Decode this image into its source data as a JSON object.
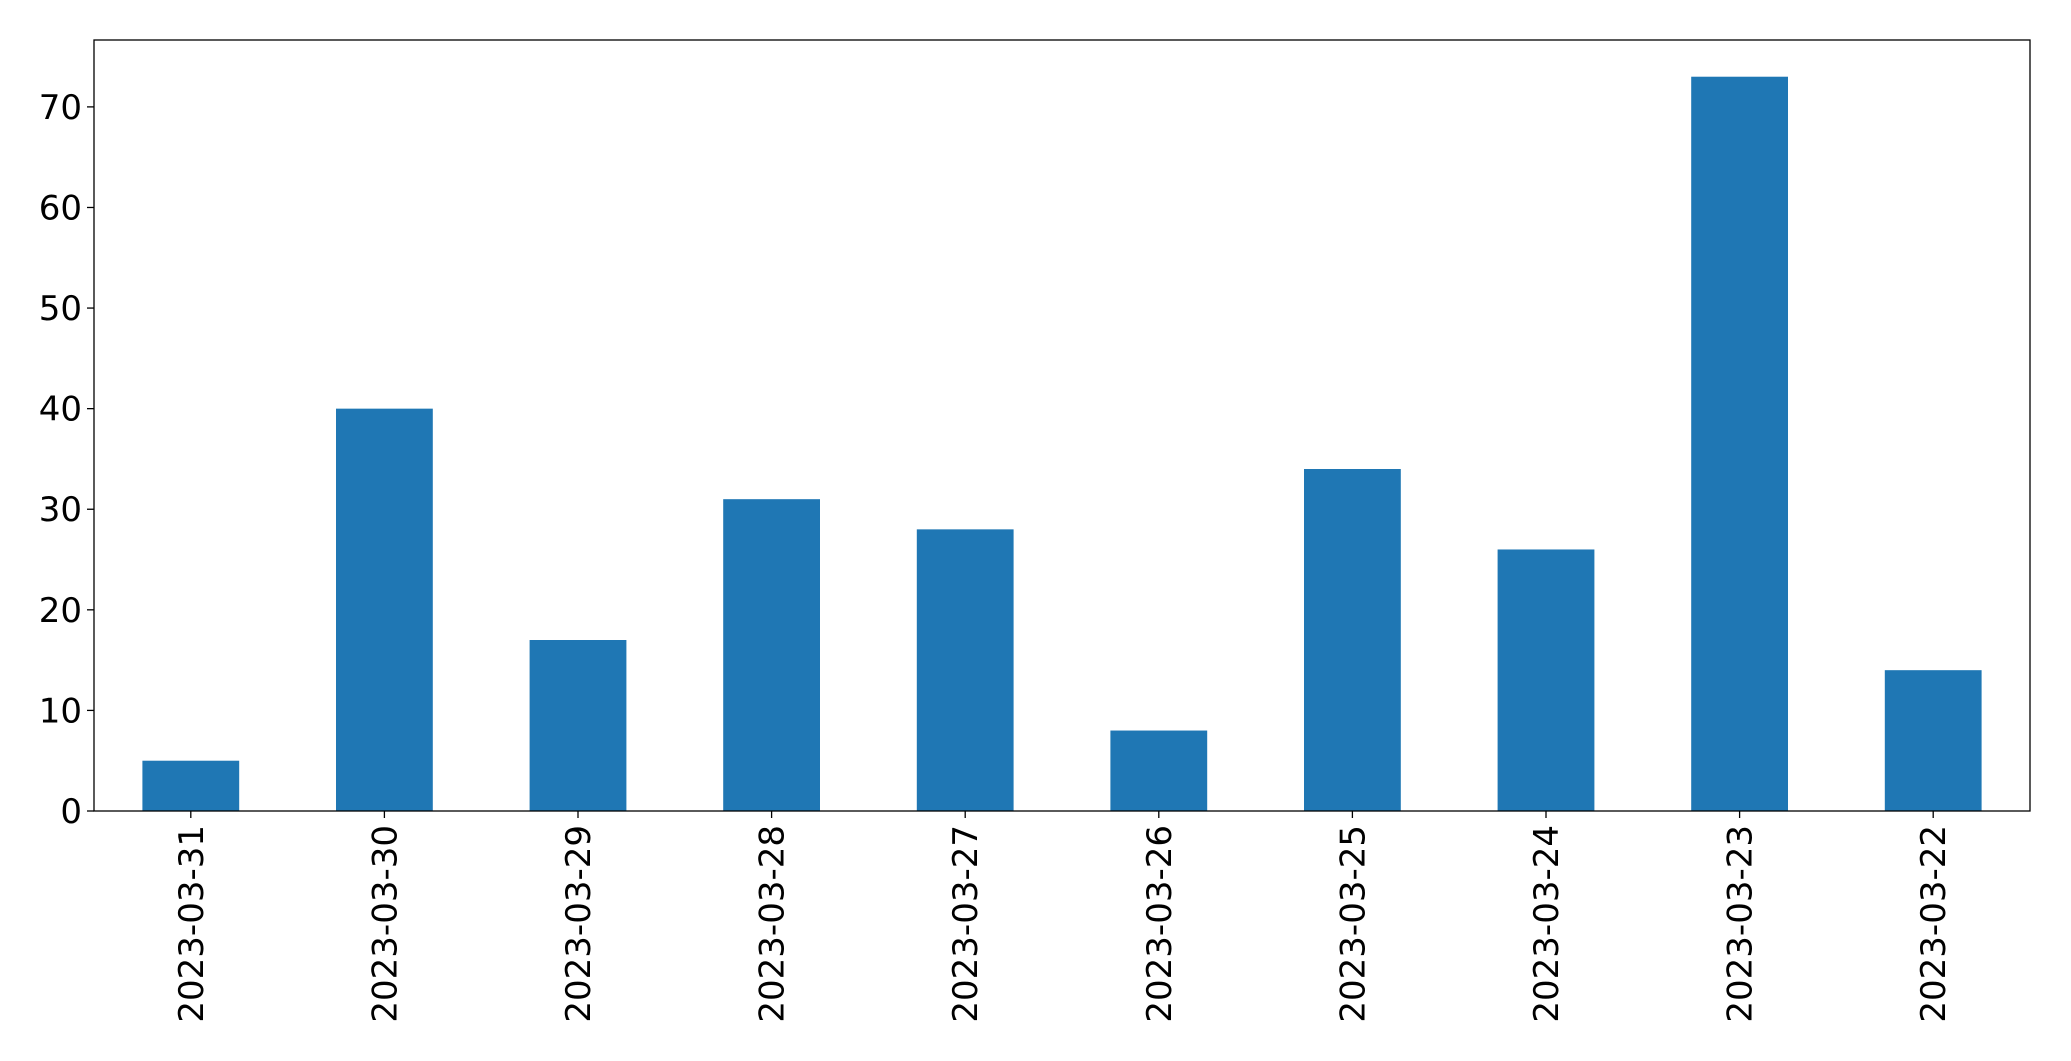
{
  "chart_data": {
    "type": "bar",
    "categories": [
      "2023-03-31",
      "2023-03-30",
      "2023-03-29",
      "2023-03-28",
      "2023-03-27",
      "2023-03-26",
      "2023-03-25",
      "2023-03-24",
      "2023-03-23",
      "2023-03-22"
    ],
    "values": [
      5,
      40,
      17,
      31,
      28,
      8,
      34,
      26,
      73,
      14
    ],
    "color": "#1f77b4",
    "ylim": [
      0,
      76.65
    ],
    "yticks": [
      0,
      10,
      20,
      30,
      40,
      50,
      60,
      70
    ],
    "grid": false
  }
}
